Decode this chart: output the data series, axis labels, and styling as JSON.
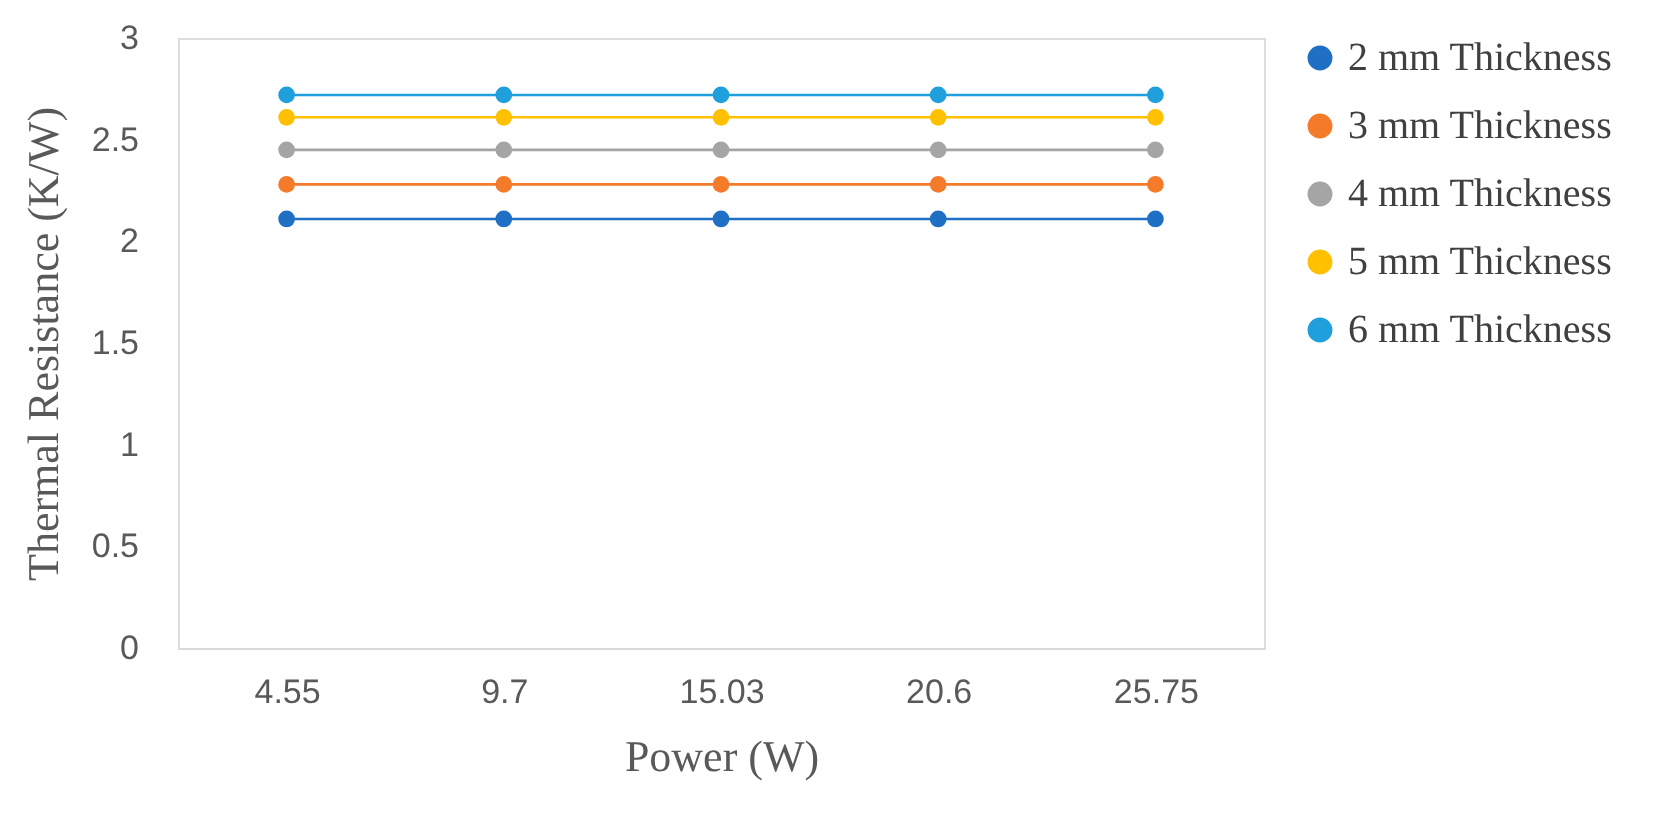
{
  "chart_data": {
    "type": "line",
    "xlabel": "Power (W)",
    "ylabel": "Thermal Resistance (K/W)",
    "categories": [
      "4.55",
      "9.7",
      "15.03",
      "20.6",
      "25.75"
    ],
    "series": [
      {
        "name": "2 mm Thickness",
        "color": "#1f6fc5",
        "values": [
          2.11,
          2.11,
          2.11,
          2.11,
          2.11
        ]
      },
      {
        "name": "3 mm Thickness",
        "color": "#f47b2a",
        "values": [
          2.28,
          2.28,
          2.28,
          2.28,
          2.28
        ]
      },
      {
        "name": "4 mm Thickness",
        "color": "#a5a5a5",
        "values": [
          2.45,
          2.45,
          2.45,
          2.45,
          2.45
        ]
      },
      {
        "name": "5 mm Thickness",
        "color": "#ffc000",
        "values": [
          2.61,
          2.61,
          2.61,
          2.61,
          2.61
        ]
      },
      {
        "name": "6 mm Thickness",
        "color": "#1f9fdb",
        "values": [
          2.72,
          2.72,
          2.72,
          2.72,
          2.72
        ]
      }
    ],
    "ylim": [
      0,
      3
    ],
    "yticks": [
      0,
      0.5,
      1,
      1.5,
      2,
      2.5,
      3
    ],
    "grid": false,
    "legend": "right",
    "marker": "circle",
    "line_style": "solid"
  }
}
